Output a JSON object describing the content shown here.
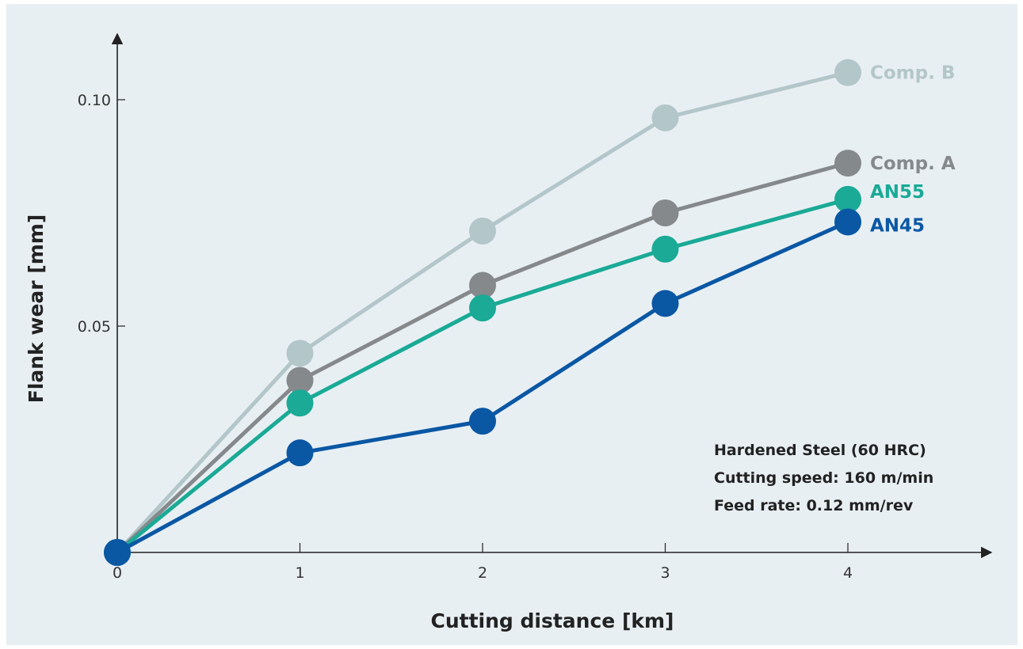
{
  "chart_data": {
    "type": "line",
    "title": "",
    "xlabel": "Cutting distance [km]",
    "ylabel": "Flank wear [mm]",
    "x": [
      0,
      1,
      2,
      3,
      4
    ],
    "x_ticks": [
      "0",
      "1",
      "2",
      "3",
      "4"
    ],
    "y_ticks": [
      {
        "value": 0.05,
        "label": "0.05"
      },
      {
        "value": 0.1,
        "label": "0.10"
      }
    ],
    "xlim": [
      0,
      4.7
    ],
    "ylim": [
      0,
      0.113
    ],
    "grid": false,
    "legend": "labels at line ends (right)",
    "series": [
      {
        "name": "Comp. B",
        "color": "#b3c6c9",
        "values": [
          0,
          0.044,
          0.071,
          0.096,
          0.106
        ]
      },
      {
        "name": "Comp. A",
        "color": "#85898c",
        "values": [
          0,
          0.038,
          0.059,
          0.075,
          0.086
        ]
      },
      {
        "name": "AN55",
        "color": "#1aaa96",
        "values": [
          0,
          0.033,
          0.054,
          0.067,
          0.078
        ]
      },
      {
        "name": "AN45",
        "color": "#0a57a4",
        "values": [
          0,
          0.022,
          0.029,
          0.055,
          0.073
        ]
      }
    ],
    "annotation_lines": [
      "Hardened Steel (60 HRC)",
      "Cutting speed: 160 m/min",
      "Feed rate: 0.12 mm/rev"
    ]
  }
}
